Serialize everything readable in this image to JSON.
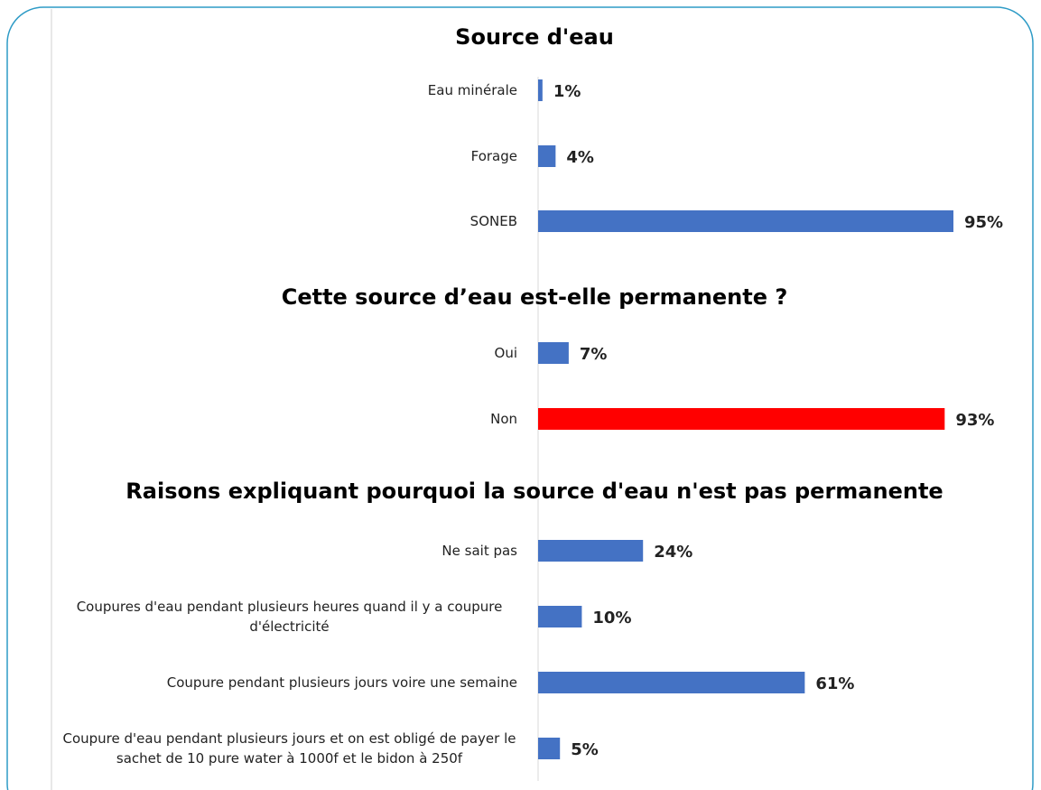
{
  "chart_data": [
    {
      "type": "bar",
      "orientation": "horizontal",
      "title": "Source d'eau",
      "categories": [
        "Eau minérale",
        "Forage",
        "SONEB"
      ],
      "values": [
        1,
        4,
        95
      ],
      "value_labels": [
        "1%",
        "4%",
        "95%"
      ],
      "colors": [
        "#4472c4",
        "#4472c4",
        "#4472c4"
      ]
    },
    {
      "type": "bar",
      "orientation": "horizontal",
      "title": "Cette source d’eau est-elle permanente ?",
      "categories": [
        "Oui",
        "Non"
      ],
      "values": [
        7,
        93
      ],
      "value_labels": [
        "7%",
        "93%"
      ],
      "colors": [
        "#4472c4",
        "#ff0000"
      ]
    },
    {
      "type": "bar",
      "orientation": "horizontal",
      "title": "Raisons expliquant pourquoi la source d'eau n'est pas permanente",
      "categories": [
        "Ne sait pas",
        "Coupures d'eau pendant plusieurs heures quand il y a coupure d'électricité",
        "Coupure pendant plusieurs jours voire une semaine",
        "Coupure d'eau pendant plusieurs jours et on est obligé de payer le sachet de 10 pure water à 1000f et le bidon à 250f"
      ],
      "values": [
        24,
        10,
        61,
        5
      ],
      "value_labels": [
        "24%",
        "10%",
        "61%",
        "5%"
      ],
      "colors": [
        "#4472c4",
        "#4472c4",
        "#4472c4",
        "#4472c4"
      ]
    }
  ]
}
